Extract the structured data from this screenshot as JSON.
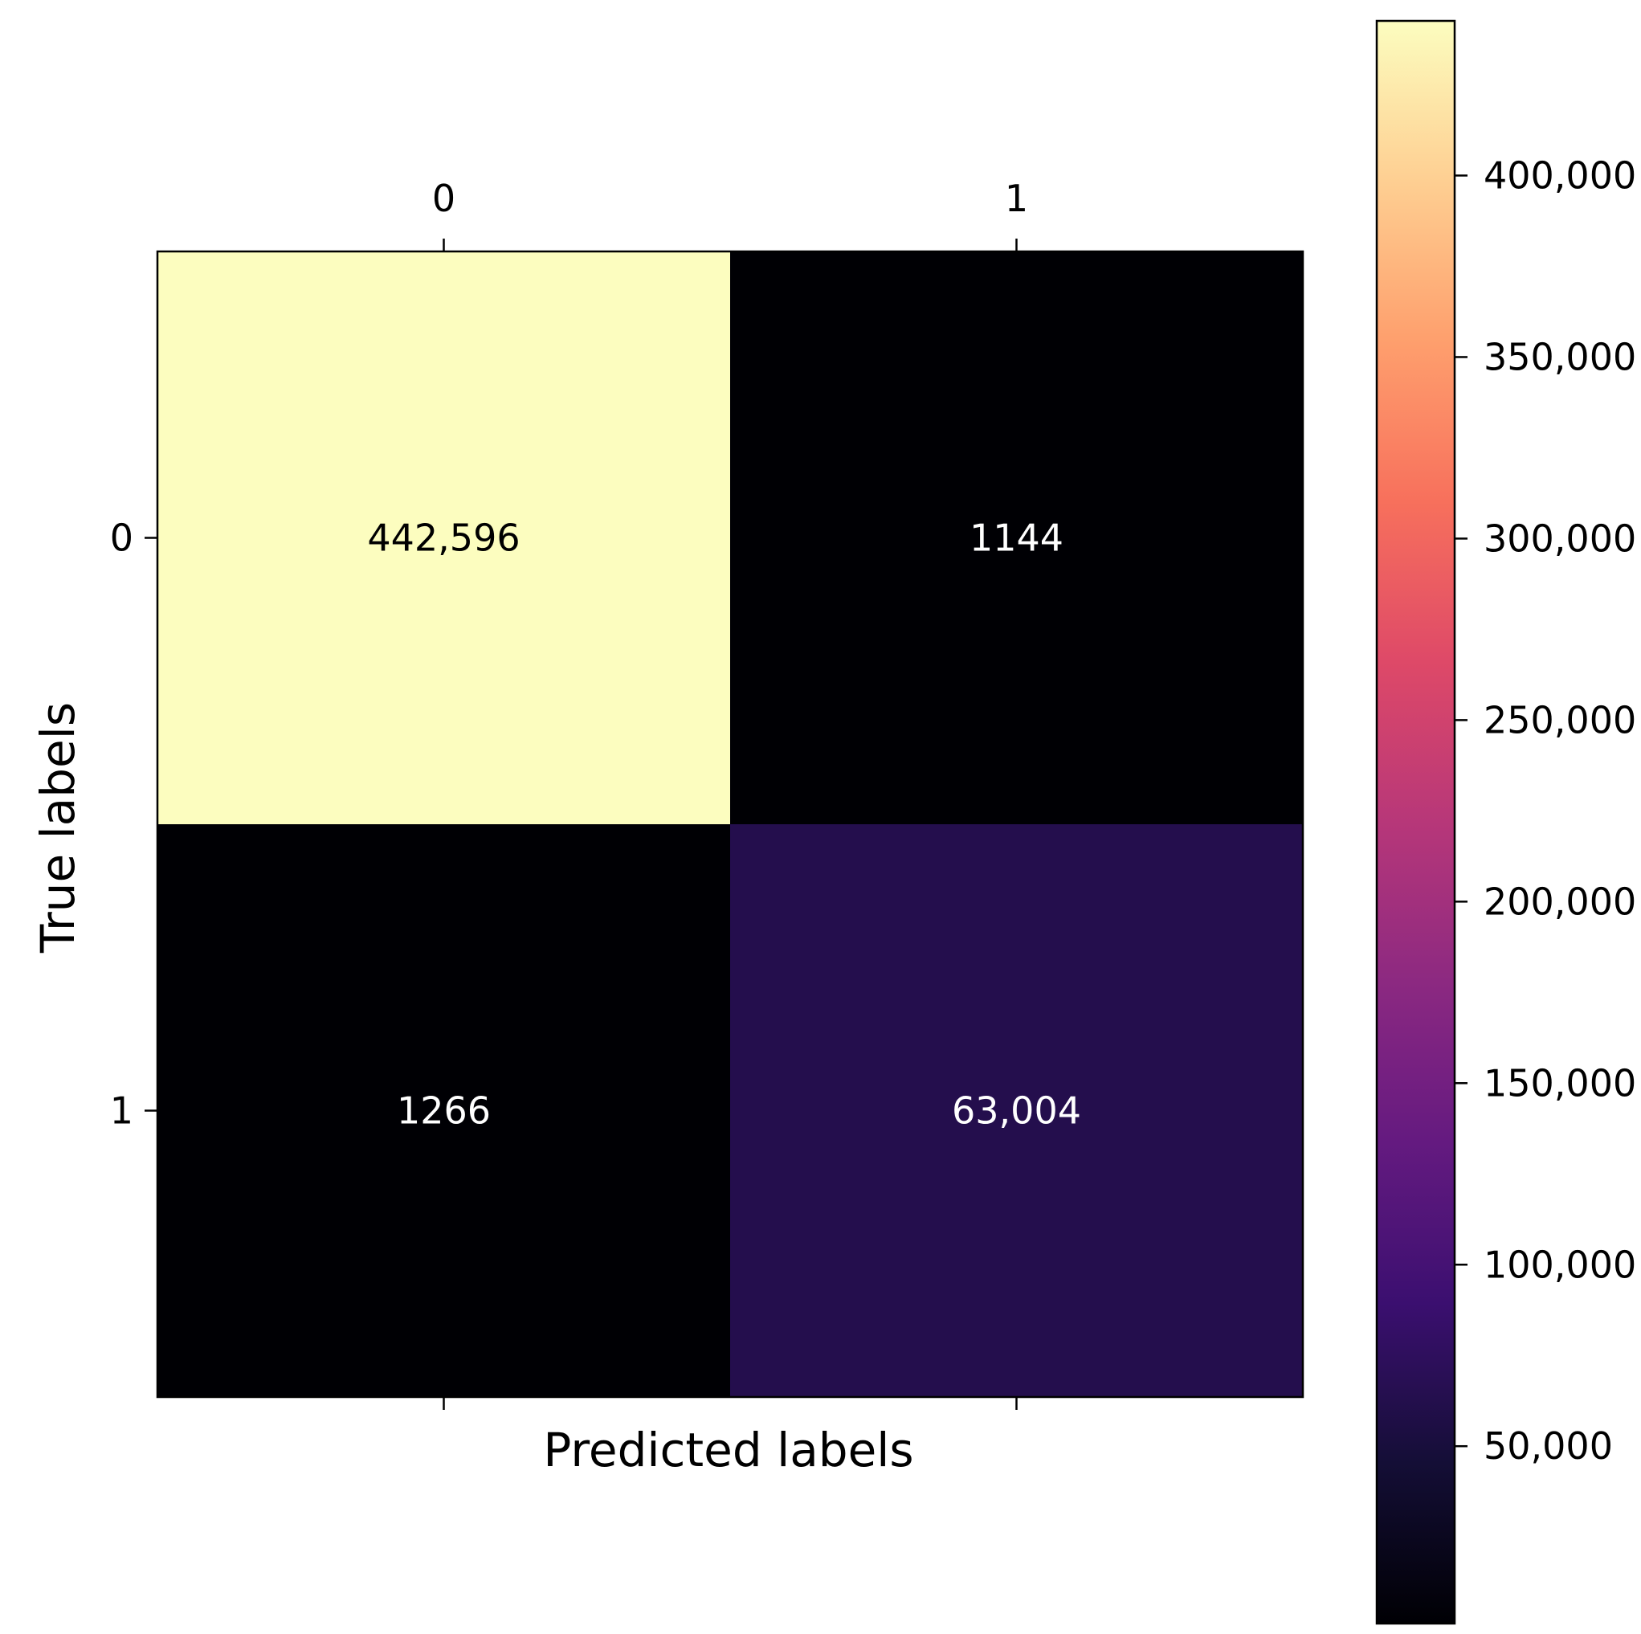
{
  "chart_data": {
    "type": "heatmap",
    "title": "",
    "xlabel": "Predicted labels",
    "ylabel": "True labels",
    "x_categories": [
      "0",
      "1"
    ],
    "y_categories": [
      "0",
      "1"
    ],
    "x_axis_position": "top",
    "values": [
      [
        442596,
        1144
      ],
      [
        1266,
        63004
      ]
    ],
    "cell_labels": [
      [
        "442,596",
        "1144"
      ],
      [
        "1266",
        "63,004"
      ]
    ],
    "colormap": "magma",
    "colorbar": {
      "placement": "right",
      "range": [
        1144,
        442596
      ],
      "ticks": [
        50000,
        100000,
        150000,
        200000,
        250000,
        300000,
        350000,
        400000
      ],
      "tick_labels": [
        "50,000",
        "100,000",
        "150,000",
        "200,000",
        "250,000",
        "300,000",
        "350,000",
        "400,000"
      ]
    },
    "grid": false,
    "legend": "none"
  }
}
